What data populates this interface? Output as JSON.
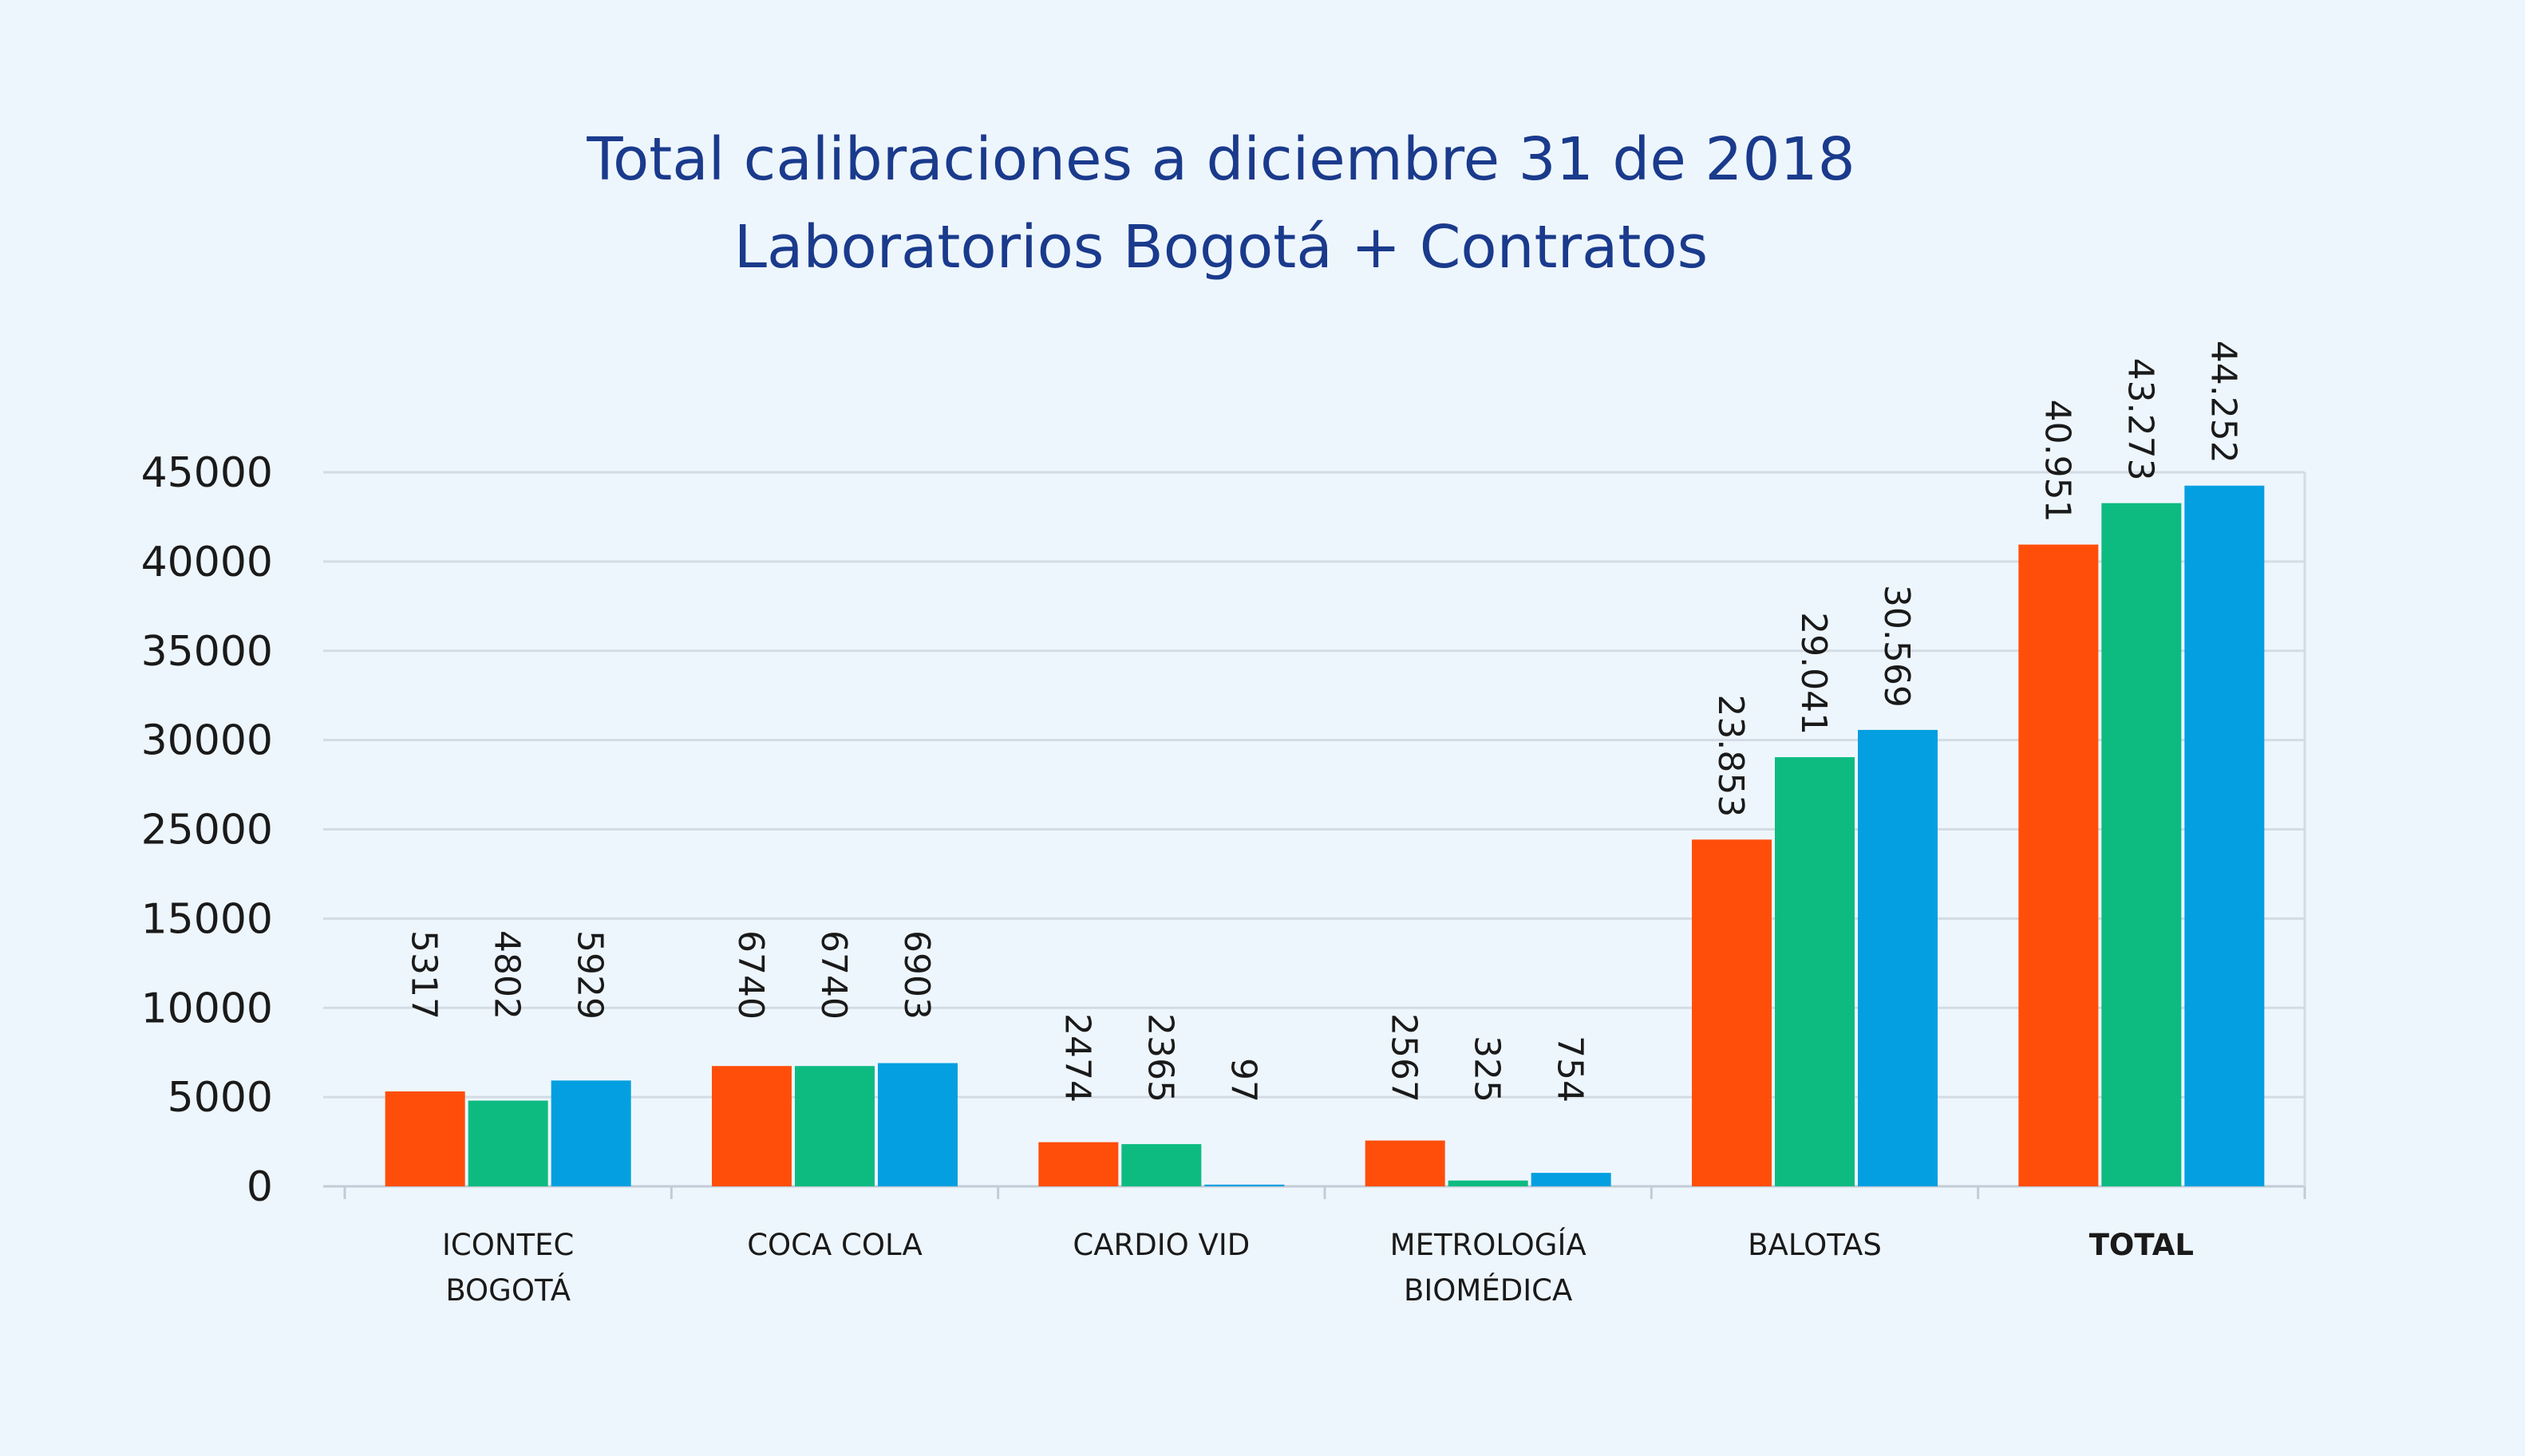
{
  "chart_data": {
    "type": "bar",
    "title_lines": [
      "Total calibraciones a diciembre 31 de 2018",
      "Laboratorios Bogotá + Contratos"
    ],
    "categories": [
      [
        "ICONTEC",
        "BOGOTÁ"
      ],
      [
        "COCA COLA"
      ],
      [
        "CARDIO VID"
      ],
      [
        "METROLOGÍA",
        "BIOMÉDICA"
      ],
      [
        "BALOTAS"
      ],
      [
        "TOTAL"
      ]
    ],
    "bold_categories": [
      5
    ],
    "y_ticks": [
      "0",
      "5000",
      "10000",
      "15000",
      "25000",
      "30000",
      "35000",
      "40000",
      "45000"
    ],
    "ylim": [
      0,
      45000
    ],
    "grid": true,
    "legend": "none",
    "series": [
      {
        "color": "#ff4e0a",
        "values": [
          5317,
          6740,
          2474,
          2567,
          23853,
          40951
        ],
        "labels": [
          "5317",
          "6740",
          "2474",
          "2567",
          "23.853",
          "40.951"
        ]
      },
      {
        "color": "#0dbb81",
        "values": [
          4802,
          6740,
          2365,
          325,
          29041,
          43273
        ],
        "labels": [
          "4802",
          "6740",
          "2365",
          "325",
          "29.041",
          "43.273"
        ]
      },
      {
        "color": "#039fe0",
        "values": [
          5929,
          6903,
          97,
          754,
          30569,
          44252
        ],
        "labels": [
          "5929",
          "6903",
          "97",
          "754",
          "30.569",
          "44.252"
        ]
      }
    ]
  }
}
